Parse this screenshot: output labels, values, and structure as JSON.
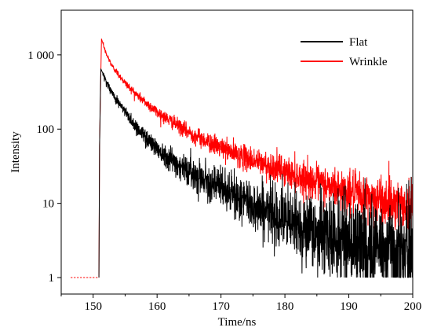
{
  "chart_data": {
    "type": "line",
    "title": "",
    "xlabel": "Time/ns",
    "ylabel": "Intensity",
    "xlim": [
      145,
      200
    ],
    "ylim": [
      0.6,
      4000
    ],
    "yscale": "log",
    "grid": false,
    "legend_position": "top-right",
    "x_ticks": [
      150,
      160,
      170,
      180,
      190,
      200
    ],
    "x_tick_labels": [
      "150",
      "160",
      "170",
      "180",
      "190",
      "200"
    ],
    "y_ticks": [
      1,
      10,
      100,
      1000
    ],
    "y_tick_labels": [
      "1",
      "10",
      "100",
      "1 000"
    ],
    "series": [
      {
        "name": "Flat",
        "color": "#000000",
        "x": [
          146.5,
          150.9,
          151.0,
          151.2,
          152,
          153,
          155,
          157,
          160,
          163,
          165,
          168,
          170,
          173,
          175,
          178,
          180,
          185,
          190,
          195,
          200
        ],
        "y": [
          1,
          1,
          60,
          650,
          450,
          300,
          170,
          100,
          55,
          35,
          27,
          20,
          16,
          11.5,
          9.5,
          7.5,
          6,
          4,
          3,
          2.5,
          2
        ],
        "noise_floor": 1
      },
      {
        "name": "Wrinkle",
        "color": "#ff0000",
        "x": [
          146.5,
          150.9,
          151.0,
          151.3,
          152,
          153,
          155,
          157,
          160,
          163,
          165,
          168,
          170,
          173,
          175,
          178,
          180,
          185,
          190,
          195,
          200
        ],
        "y": [
          1,
          1,
          60,
          1650,
          1050,
          700,
          420,
          280,
          170,
          115,
          90,
          67,
          56,
          44,
          38,
          31,
          27,
          19,
          14,
          11,
          9
        ],
        "noise_floor": 1
      }
    ]
  }
}
